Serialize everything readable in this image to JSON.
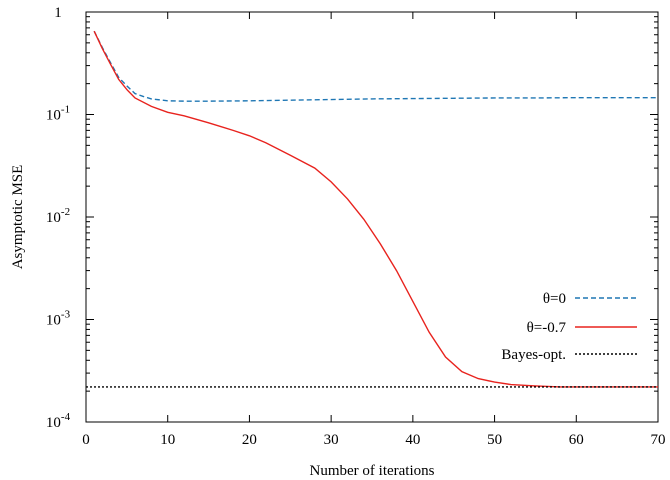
{
  "chart_data": {
    "type": "line",
    "title": "",
    "xlabel": "Number of iterations",
    "ylabel": "Asymptotic MSE",
    "xlim": [
      0,
      70
    ],
    "ylim": [
      0.0001,
      1
    ],
    "yscale": "log",
    "grid": false,
    "legend_position": "bottom-right",
    "x_ticks": [
      0,
      10,
      20,
      30,
      40,
      50,
      60,
      70
    ],
    "x_tick_labels": [
      "0",
      "10",
      "20",
      "30",
      "40",
      "50",
      "60",
      "70"
    ],
    "y_ticks": [
      {
        "value": 1,
        "base": "1",
        "exp": ""
      },
      {
        "value": 0.1,
        "base": "10",
        "exp": "-1"
      },
      {
        "value": 0.01,
        "base": "10",
        "exp": "-2"
      },
      {
        "value": 0.001,
        "base": "10",
        "exp": "-3"
      },
      {
        "value": 0.0001,
        "base": "10",
        "exp": "-4"
      }
    ],
    "series": [
      {
        "name": "θ=0",
        "color": "#1f77b4",
        "dash": "dashed",
        "x": [
          1,
          2,
          3,
          4,
          5,
          6,
          7,
          8,
          10,
          12,
          15,
          20,
          25,
          30,
          35,
          40,
          45,
          50,
          55,
          60,
          65,
          70
        ],
        "y": [
          0.65,
          0.45,
          0.32,
          0.23,
          0.19,
          0.16,
          0.15,
          0.142,
          0.136,
          0.135,
          0.135,
          0.136,
          0.138,
          0.14,
          0.142,
          0.143,
          0.144,
          0.145,
          0.145,
          0.146,
          0.146,
          0.146
        ]
      },
      {
        "name": "θ=-0.7",
        "color": "#e8231e",
        "dash": "solid",
        "x": [
          1,
          2,
          3,
          4,
          5,
          6,
          8,
          10,
          12,
          15,
          18,
          20,
          22,
          25,
          28,
          30,
          32,
          34,
          36,
          38,
          40,
          42,
          44,
          46,
          48,
          50,
          52,
          55,
          58,
          60,
          65,
          70
        ],
        "y": [
          0.65,
          0.44,
          0.31,
          0.22,
          0.175,
          0.145,
          0.12,
          0.105,
          0.097,
          0.083,
          0.07,
          0.062,
          0.053,
          0.04,
          0.03,
          0.022,
          0.015,
          0.0095,
          0.0055,
          0.003,
          0.0015,
          0.00075,
          0.00043,
          0.00031,
          0.000265,
          0.000245,
          0.000232,
          0.000225,
          0.00022,
          0.00022,
          0.00022,
          0.00022
        ]
      },
      {
        "name": "Bayes-opt.",
        "color": "#000000",
        "dash": "dotted",
        "x": [
          0,
          70
        ],
        "y": [
          0.00022,
          0.00022
        ]
      }
    ]
  }
}
